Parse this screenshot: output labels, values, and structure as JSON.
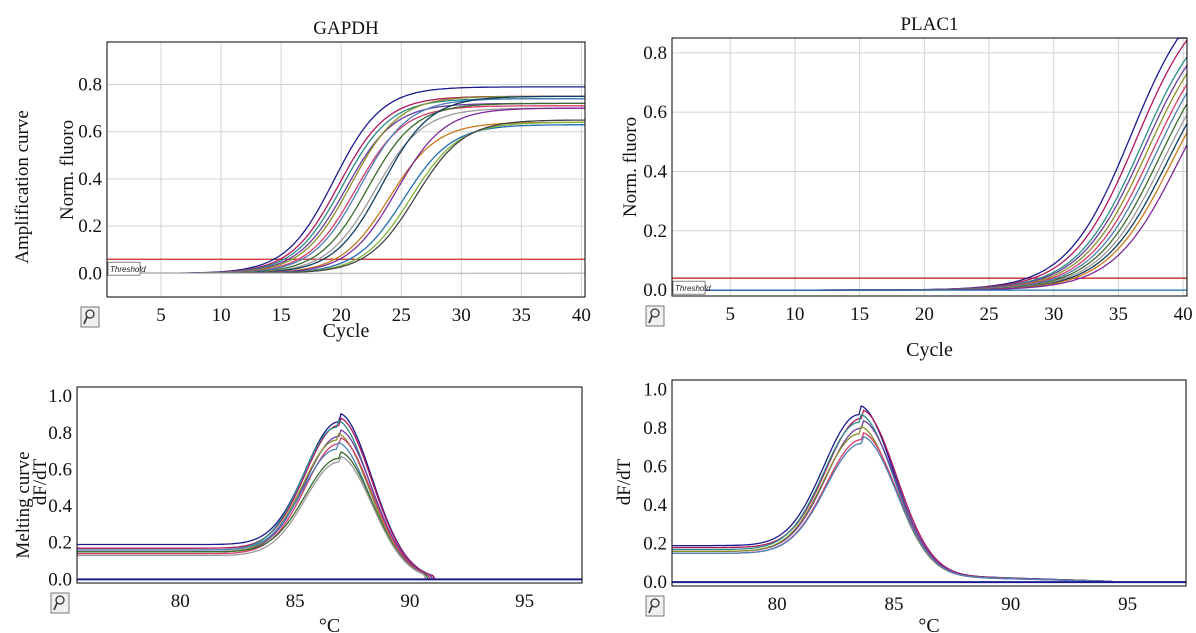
{
  "figure": {
    "row_labels": {
      "amplification": "Amplification curve",
      "melting": "Melting curve"
    },
    "threshold_label": "Threshold",
    "colors": {
      "threshold": "#c62828",
      "grid": "#d4d4d4",
      "axis": "#000000",
      "series_palette": [
        "#1b1b8f",
        "#b0175e",
        "#2b8c89",
        "#6a3ea1",
        "#8a8f2a",
        "#d33d6a",
        "#4e7fb8",
        "#3c6a2e",
        "#9a9a9a",
        "#0f3d5e",
        "#c77a1e",
        "#7d2a9a",
        "#1f6fb0",
        "#7fb53a",
        "#444444",
        "#c0c0c0"
      ]
    }
  },
  "chart_data": [
    {
      "id": "gapdh-amp",
      "type": "line",
      "title": "GAPDH",
      "xlabel": "Cycle",
      "ylabel": "Norm. fluoro",
      "xlim": [
        0.5,
        40.3
      ],
      "ylim": [
        -0.1,
        0.98
      ],
      "xticks": [
        5,
        10,
        15,
        20,
        25,
        30,
        35,
        40
      ],
      "yticks": [
        0.0,
        0.2,
        0.4,
        0.6,
        0.8
      ],
      "ytick_labels": [
        "0.0",
        "0.2",
        "0.4",
        "0.6",
        "0.8"
      ],
      "grid": true,
      "threshold": 0.06,
      "model": "sigmoid",
      "series": [
        {
          "ct": 19.4,
          "plateau": 0.79,
          "slope": 2.0
        },
        {
          "ct": 19.8,
          "plateau": 0.75,
          "slope": 2.0
        },
        {
          "ct": 20.1,
          "plateau": 0.74,
          "slope": 2.0
        },
        {
          "ct": 20.4,
          "plateau": 0.72,
          "slope": 2.0
        },
        {
          "ct": 20.8,
          "plateau": 0.75,
          "slope": 2.0
        },
        {
          "ct": 21.2,
          "plateau": 0.71,
          "slope": 2.0
        },
        {
          "ct": 21.6,
          "plateau": 0.74,
          "slope": 2.0
        },
        {
          "ct": 22.2,
          "plateau": 0.72,
          "slope": 2.0
        },
        {
          "ct": 22.8,
          "plateau": 0.7,
          "slope": 2.0
        },
        {
          "ct": 23.4,
          "plateau": 0.75,
          "slope": 2.0
        },
        {
          "ct": 24.0,
          "plateau": 0.64,
          "slope": 2.0
        },
        {
          "ct": 24.6,
          "plateau": 0.7,
          "slope": 2.0
        },
        {
          "ct": 25.2,
          "plateau": 0.63,
          "slope": 2.0
        },
        {
          "ct": 25.8,
          "plateau": 0.64,
          "slope": 2.0
        },
        {
          "ct": 26.2,
          "plateau": 0.65,
          "slope": 2.0
        },
        {
          "ct": 60,
          "plateau": 0.02,
          "slope": 6.0
        }
      ]
    },
    {
      "id": "plac1-amp",
      "type": "line",
      "title": "PLAC1",
      "xlabel": "Cycle",
      "ylabel": "Norm. fluoro",
      "xlim": [
        0.5,
        40.3
      ],
      "ylim": [
        -0.02,
        0.85
      ],
      "xticks": [
        5,
        10,
        15,
        20,
        25,
        30,
        35,
        40
      ],
      "yticks": [
        0.0,
        0.2,
        0.4,
        0.6,
        0.8
      ],
      "ytick_labels": [
        "0.0",
        "0.2",
        "0.4",
        "0.6",
        "0.8"
      ],
      "grid": true,
      "threshold": 0.04,
      "model": "sigmoid",
      "series": [
        {
          "ct": 36.0,
          "plateau": 1.05,
          "slope": 2.5
        },
        {
          "ct": 36.4,
          "plateau": 1.02,
          "slope": 2.5
        },
        {
          "ct": 36.8,
          "plateau": 0.98,
          "slope": 2.5
        },
        {
          "ct": 37.0,
          "plateau": 0.96,
          "slope": 2.5
        },
        {
          "ct": 37.3,
          "plateau": 0.95,
          "slope": 2.5
        },
        {
          "ct": 37.6,
          "plateau": 0.93,
          "slope": 2.5
        },
        {
          "ct": 37.9,
          "plateau": 0.92,
          "slope": 2.5
        },
        {
          "ct": 38.2,
          "plateau": 0.9,
          "slope": 2.5
        },
        {
          "ct": 38.5,
          "plateau": 0.88,
          "slope": 2.5
        },
        {
          "ct": 38.8,
          "plateau": 0.87,
          "slope": 2.5
        },
        {
          "ct": 39.1,
          "plateau": 0.86,
          "slope": 2.5
        },
        {
          "ct": 39.6,
          "plateau": 0.86,
          "slope": 2.5
        },
        {
          "ct": 80,
          "plateau": 0.01,
          "slope": 6.0
        }
      ]
    },
    {
      "id": "gapdh-melt",
      "type": "line",
      "title": "",
      "xlabel": "°C",
      "ylabel": "dF/dT",
      "xlim": [
        75.5,
        97.5
      ],
      "ylim": [
        -0.02,
        1.05
      ],
      "xticks": [
        80,
        85,
        90,
        95
      ],
      "yticks": [
        0.0,
        0.2,
        0.4,
        0.6,
        0.8,
        1.0
      ],
      "ytick_labels": [
        "0.0",
        "0.2",
        "0.4",
        "0.6",
        "0.8",
        "1.0"
      ],
      "grid": false,
      "model": "melt",
      "series": [
        {
          "peak_x": 86.9,
          "peak_y": 0.86,
          "sigma": 1.45,
          "base": 0.19,
          "end_x": 91.0
        },
        {
          "peak_x": 86.9,
          "peak_y": 0.84,
          "sigma": 1.45,
          "base": 0.17,
          "end_x": 91.0
        },
        {
          "peak_x": 86.8,
          "peak_y": 0.83,
          "sigma": 1.45,
          "base": 0.16,
          "end_x": 90.9
        },
        {
          "peak_x": 86.9,
          "peak_y": 0.78,
          "sigma": 1.45,
          "base": 0.15,
          "end_x": 90.9
        },
        {
          "peak_x": 86.8,
          "peak_y": 0.76,
          "sigma": 1.45,
          "base": 0.15,
          "end_x": 90.8
        },
        {
          "peak_x": 86.9,
          "peak_y": 0.74,
          "sigma": 1.45,
          "base": 0.14,
          "end_x": 90.8
        },
        {
          "peak_x": 86.8,
          "peak_y": 0.71,
          "sigma": 1.45,
          "base": 0.16,
          "end_x": 90.7
        },
        {
          "peak_x": 86.9,
          "peak_y": 0.66,
          "sigma": 1.45,
          "base": 0.15,
          "end_x": 90.7
        },
        {
          "peak_x": 86.9,
          "peak_y": 0.64,
          "sigma": 1.45,
          "base": 0.13,
          "end_x": 90.6
        }
      ]
    },
    {
      "id": "plac1-melt",
      "type": "line",
      "title": "",
      "xlabel": "°C",
      "ylabel": "dF/dT",
      "xlim": [
        75.5,
        97.5
      ],
      "ylim": [
        -0.02,
        1.05
      ],
      "xticks": [
        80,
        85,
        90,
        95
      ],
      "yticks": [
        0.0,
        0.2,
        0.4,
        0.6,
        0.8,
        1.0
      ],
      "ytick_labels": [
        "0.0",
        "0.2",
        "0.4",
        "0.6",
        "0.8",
        "1.0"
      ],
      "grid": false,
      "model": "melt",
      "series": [
        {
          "peak_x": 83.5,
          "peak_y": 0.87,
          "sigma": 1.5,
          "base": 0.19,
          "end_x": 94.3
        },
        {
          "peak_x": 83.6,
          "peak_y": 0.85,
          "sigma": 1.5,
          "base": 0.18,
          "end_x": 94.3
        },
        {
          "peak_x": 83.5,
          "peak_y": 0.83,
          "sigma": 1.5,
          "base": 0.17,
          "end_x": 94.3
        },
        {
          "peak_x": 83.6,
          "peak_y": 0.8,
          "sigma": 1.5,
          "base": 0.16,
          "end_x": 94.3
        },
        {
          "peak_x": 83.5,
          "peak_y": 0.77,
          "sigma": 1.5,
          "base": 0.16,
          "end_x": 94.3
        },
        {
          "peak_x": 83.6,
          "peak_y": 0.74,
          "sigma": 1.5,
          "base": 0.15,
          "end_x": 94.3
        },
        {
          "peak_x": 83.6,
          "peak_y": 0.72,
          "sigma": 1.5,
          "base": 0.15,
          "end_x": 94.3
        }
      ]
    }
  ]
}
